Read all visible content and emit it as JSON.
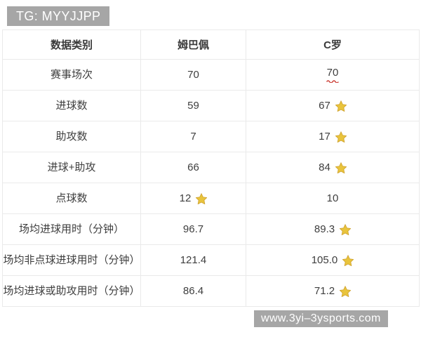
{
  "watermarks": {
    "top_left": "TG: MYYJJPP",
    "bottom_right": "www.3yi–3ysports.com"
  },
  "chart_data": {
    "type": "table",
    "columns": [
      "数据类别",
      "姆巴佩",
      "C罗"
    ],
    "rows": [
      {
        "cells": [
          {
            "text": "赛事场次"
          },
          {
            "text": "70"
          },
          {
            "text": "70",
            "underline_wavy": true
          }
        ]
      },
      {
        "cells": [
          {
            "text": "进球数"
          },
          {
            "text": "59"
          },
          {
            "text": "67",
            "star": true
          }
        ]
      },
      {
        "cells": [
          {
            "text": "助攻数"
          },
          {
            "text": "7"
          },
          {
            "text": "17",
            "star": true
          }
        ]
      },
      {
        "cells": [
          {
            "text": "进球+助攻"
          },
          {
            "text": "66"
          },
          {
            "text": "84",
            "star": true
          }
        ]
      },
      {
        "cells": [
          {
            "text": "点球数"
          },
          {
            "text": "12",
            "star": true
          },
          {
            "text": "10"
          }
        ]
      },
      {
        "cells": [
          {
            "text": "场均进球用时（分钟）"
          },
          {
            "text": "96.7"
          },
          {
            "text": "89.3",
            "star": true
          }
        ]
      },
      {
        "cells": [
          {
            "text": "场均非点球进球用时（分钟）"
          },
          {
            "text": "121.4"
          },
          {
            "text": "105.0",
            "star": true
          }
        ]
      },
      {
        "cells": [
          {
            "text": "场均进球或助攻用时（分钟）"
          },
          {
            "text": "86.4"
          },
          {
            "text": "71.2",
            "star": true
          }
        ]
      }
    ],
    "legend": "star marks the better value in each row",
    "layout": {
      "grid": "light-gray cell borders",
      "header_row": true
    }
  },
  "colors": {
    "star_gold_fill": "#e9c43c",
    "star_gold_stroke": "#cfa22e",
    "squiggle_red": "#cc4038",
    "watermark_bg": "#a6a6a6",
    "watermark_text": "#ffffff",
    "border": "#eaeaea",
    "text": "#3e3e3e",
    "background": "#ffffff"
  }
}
